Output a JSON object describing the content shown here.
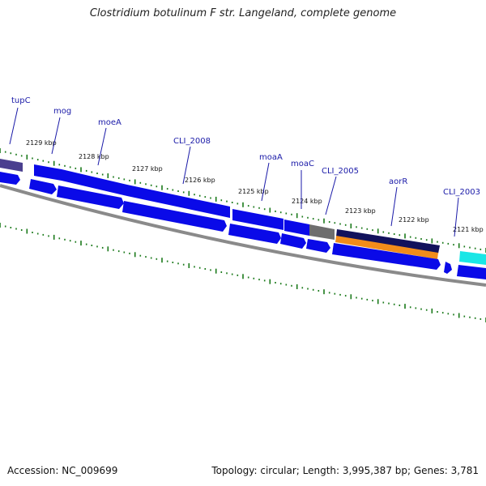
{
  "title": "Clostridium botulinum F str. Langeland, complete genome",
  "footer": {
    "accession": "Accession: NC_009699",
    "topology": "Topology: circular; Length: 3,995,387 bp; Genes: 3,781"
  },
  "colors": {
    "cds": "#0a0ae8",
    "cds_light": "#5c5cff",
    "backbone": "#8a8a8a",
    "tick": "#1b7a1b",
    "label": "#1a1aa8",
    "grey_gene": "#6e6e6e",
    "navy_gene": "#12125c",
    "orange_gene": "#f28c1a",
    "cyan_gene": "#1ae6e6",
    "purple_gene": "#4a3f8f"
  },
  "gene_labels": [
    "tupC",
    "mog",
    "moeA",
    "CLI_2008",
    "moaA",
    "moaC",
    "CLI_2005",
    "aorR",
    "CLI_2003"
  ],
  "kbp_labels": [
    "2129 kbp",
    "2128 kbp",
    "2127 kbp",
    "2126 kbp",
    "2125 kbp",
    "2124 kbp",
    "2123 kbp",
    "2122 kbp",
    "2121 kbp"
  ]
}
